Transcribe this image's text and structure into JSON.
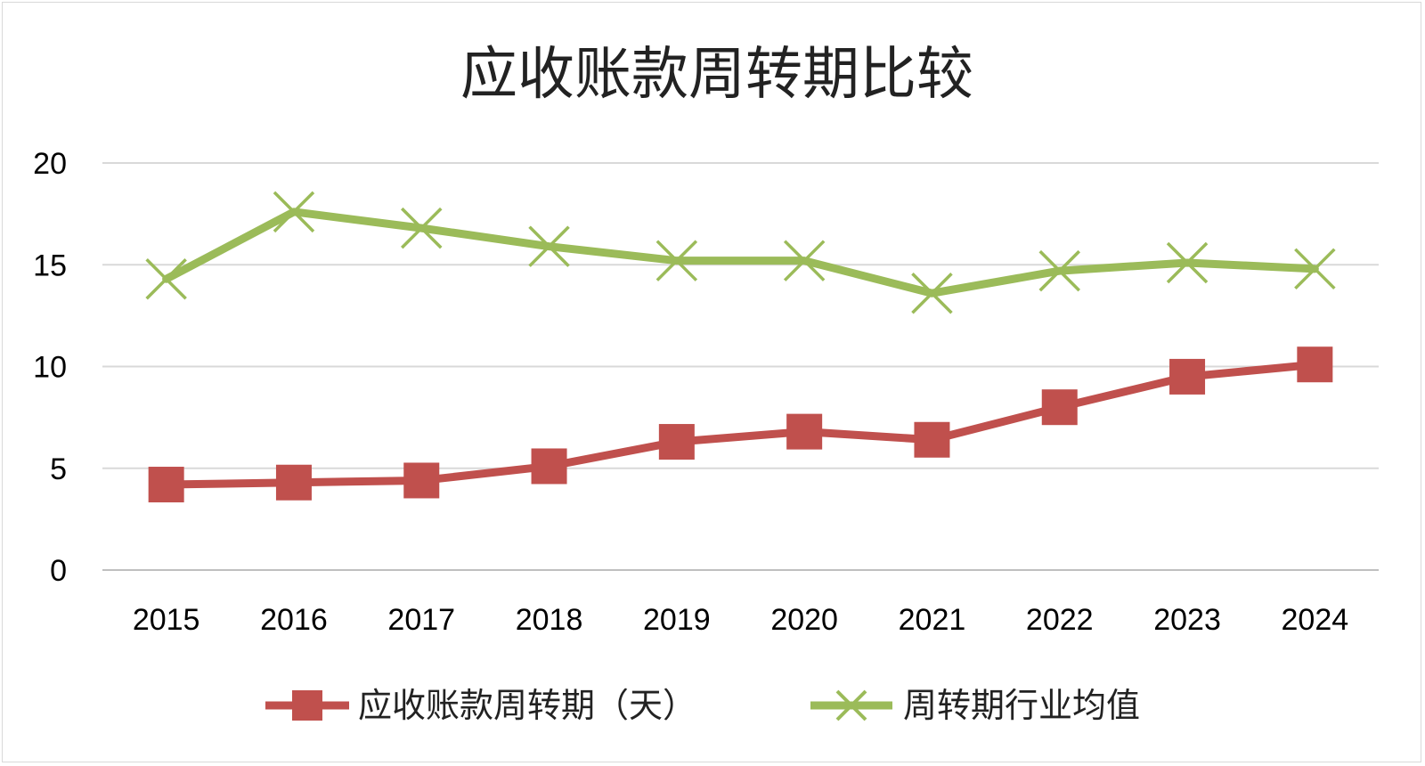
{
  "chart_data": {
    "type": "line",
    "title": "应收账款周转期比较",
    "xlabel": "",
    "ylabel": "",
    "categories": [
      "2015",
      "2016",
      "2017",
      "2018",
      "2019",
      "2020",
      "2021",
      "2022",
      "2023",
      "2024"
    ],
    "ylim": [
      0,
      20
    ],
    "yticks": [
      0,
      5,
      10,
      15,
      20
    ],
    "grid": true,
    "legend_position": "bottom",
    "series": [
      {
        "name": "应收账款周转期（天）",
        "color": "#c0504d",
        "marker": "square",
        "values": [
          4.2,
          4.3,
          4.4,
          5.1,
          6.3,
          6.8,
          6.4,
          8.0,
          9.5,
          10.1
        ]
      },
      {
        "name": "周转期行业均值",
        "color": "#9bbb59",
        "marker": "x",
        "values": [
          14.3,
          17.6,
          16.8,
          15.9,
          15.2,
          15.2,
          13.6,
          14.7,
          15.1,
          14.8
        ]
      }
    ]
  }
}
